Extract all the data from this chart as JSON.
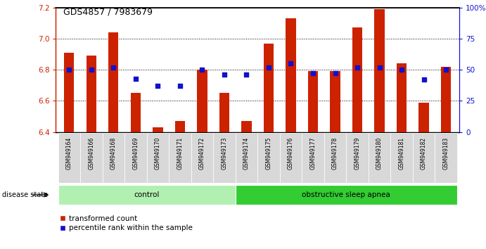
{
  "title": "GDS4857 / 7983679",
  "samples": [
    "GSM949164",
    "GSM949166",
    "GSM949168",
    "GSM949169",
    "GSM949170",
    "GSM949171",
    "GSM949172",
    "GSM949173",
    "GSM949174",
    "GSM949175",
    "GSM949176",
    "GSM949177",
    "GSM949178",
    "GSM949179",
    "GSM949180",
    "GSM949181",
    "GSM949182",
    "GSM949183"
  ],
  "bar_values": [
    6.91,
    6.89,
    7.04,
    6.65,
    6.43,
    6.47,
    6.8,
    6.65,
    6.47,
    6.97,
    7.13,
    6.79,
    6.79,
    7.07,
    7.19,
    6.84,
    6.59,
    6.82
  ],
  "percentile_values": [
    50,
    50,
    52,
    43,
    37,
    37,
    50,
    46,
    46,
    52,
    55,
    47,
    47,
    52,
    52,
    50,
    42,
    50
  ],
  "groups": [
    {
      "label": "control",
      "start": 0,
      "end": 8,
      "color": "#b2f0b2"
    },
    {
      "label": "obstructive sleep apnea",
      "start": 8,
      "end": 18,
      "color": "#33cc33"
    }
  ],
  "ylim_left": [
    6.4,
    7.2
  ],
  "ylim_right": [
    0,
    100
  ],
  "yticks_left": [
    6.4,
    6.6,
    6.8,
    7.0,
    7.2
  ],
  "yticks_right": [
    0,
    25,
    50,
    75,
    100
  ],
  "bar_color": "#CC2200",
  "dot_color": "#1111CC",
  "bg_color": "#FFFFFF",
  "tick_color_left": "#CC2200",
  "tick_color_right": "#1111CC",
  "legend_items": [
    {
      "color": "#CC2200",
      "label": "transformed count"
    },
    {
      "color": "#1111CC",
      "label": "percentile rank within the sample"
    }
  ]
}
